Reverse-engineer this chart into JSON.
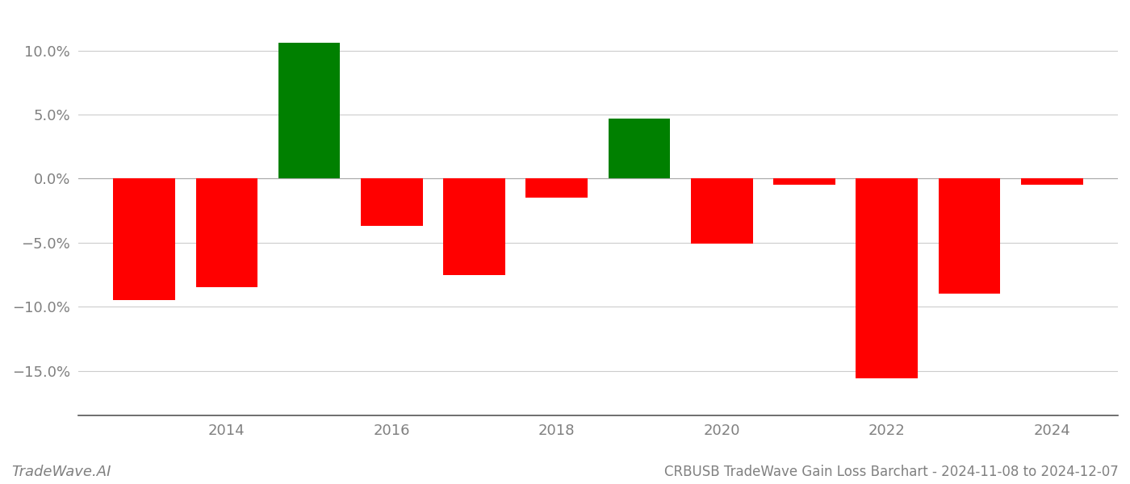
{
  "years": [
    2013,
    2014,
    2015,
    2016,
    2017,
    2018,
    2019,
    2020,
    2021,
    2022,
    2023,
    2024
  ],
  "values": [
    -9.5,
    -8.5,
    10.6,
    -3.7,
    -7.5,
    -1.5,
    4.7,
    -5.1,
    -0.5,
    -15.6,
    -9.0,
    -0.5
  ],
  "positive_color": "#008000",
  "negative_color": "#ff0000",
  "background_color": "#ffffff",
  "grid_color": "#cccccc",
  "text_color": "#808080",
  "title_text": "CRBUSB TradeWave Gain Loss Barchart - 2024-11-08 to 2024-12-07",
  "watermark_text": "TradeWave.AI",
  "ylim_min": -18.5,
  "ylim_max": 13.0,
  "ytick_values": [
    -15.0,
    -10.0,
    -5.0,
    0.0,
    5.0,
    10.0
  ],
  "bar_width": 0.75,
  "title_fontsize": 12,
  "watermark_fontsize": 13,
  "tick_fontsize": 13,
  "axis_label_color": "#808080",
  "xticks": [
    2014,
    2016,
    2018,
    2020,
    2022,
    2024
  ]
}
